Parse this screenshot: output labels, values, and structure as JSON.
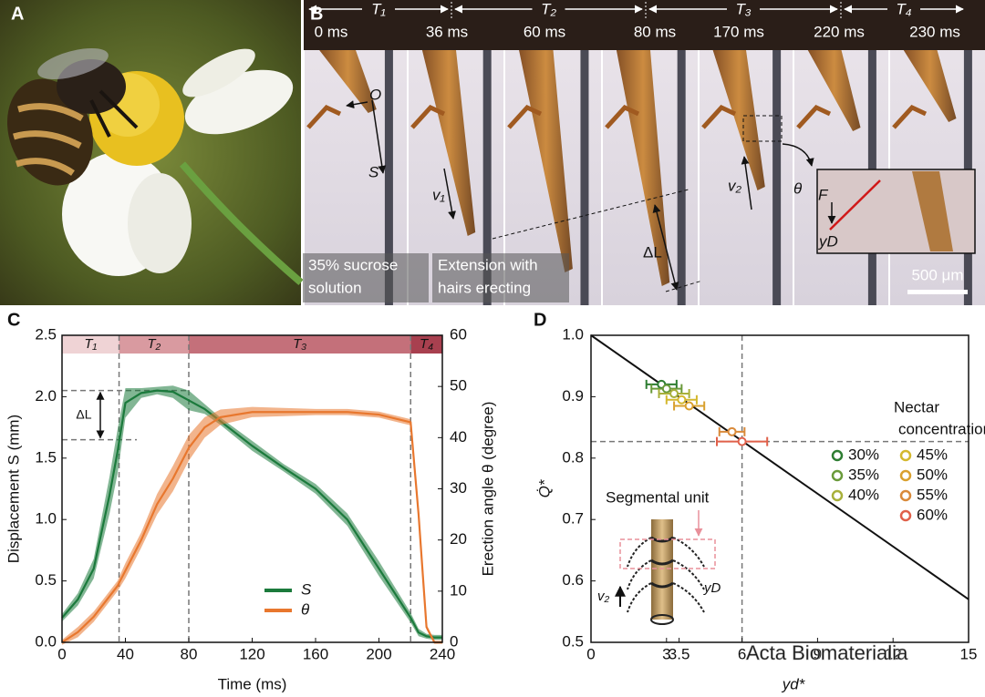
{
  "panel_labels": [
    "A",
    "B",
    "C",
    "D"
  ],
  "panel_b": {
    "phases": [
      "T₁",
      "T₂",
      "T₃",
      "T₄"
    ],
    "frame_times": [
      "0 ms",
      "36 ms",
      "60 ms",
      "80 ms",
      "170 ms",
      "220 ms",
      "230 ms"
    ],
    "origin": "O",
    "displacement": "S",
    "velocity_1": "v₁",
    "velocity_2": "v₂",
    "extension": "ΔL",
    "angle": "θ",
    "force": "F",
    "hair_offset": "yD",
    "caption_1": [
      "35% sucrose",
      "solution"
    ],
    "caption_2": [
      "Extension with",
      "hairs erecting"
    ],
    "scale_bar": "500 μm"
  },
  "chart_data": [
    {
      "type": "line",
      "xlabel": "Time (ms)",
      "ylabel": "Displacement  S (mm)",
      "y2label": "Erection angle θ (degree)",
      "x": [
        0,
        10,
        20,
        30,
        35,
        40,
        50,
        60,
        70,
        80,
        90,
        100,
        120,
        140,
        160,
        180,
        200,
        220,
        225,
        230,
        235,
        240
      ],
      "series": [
        {
          "name": "S",
          "color": "#1b7a3c",
          "values": [
            0.2,
            0.35,
            0.6,
            1.2,
            1.55,
            1.95,
            2.03,
            2.05,
            2.04,
            1.97,
            1.9,
            1.8,
            1.6,
            1.42,
            1.25,
            1.0,
            0.6,
            0.2,
            0.08,
            0.05,
            0.04,
            0.04
          ],
          "errors": [
            0.03,
            0.05,
            0.08,
            0.15,
            0.18,
            0.12,
            0.04,
            0.03,
            0.05,
            0.08,
            0.04,
            0.03,
            0.04,
            0.03,
            0.04,
            0.05,
            0.06,
            0.04,
            0.03,
            0.02,
            0.02,
            0.02
          ]
        },
        {
          "name": "θ",
          "color": "#e8772e",
          "axis": "y2",
          "values": [
            0,
            2,
            5,
            9,
            11,
            14,
            20,
            27,
            32,
            38,
            42,
            44,
            45,
            45,
            45,
            45,
            44.5,
            43,
            25,
            3,
            0,
            0
          ],
          "errors": [
            0.5,
            1,
            1,
            1,
            1,
            1.5,
            1.5,
            2,
            2.5,
            2.5,
            2,
            1.5,
            1,
            0.8,
            0.6,
            0.6,
            0.6,
            0.6,
            1,
            0.5,
            0.3,
            0.3
          ]
        }
      ],
      "xlim": [
        0,
        240
      ],
      "xticks": [
        0,
        40,
        80,
        120,
        160,
        200,
        240
      ],
      "ylim": [
        0,
        2.5
      ],
      "yticks": [
        {
          "value": 0,
          "label": "0.0"
        },
        0.5,
        {
          "value": 1,
          "label": "1.0"
        },
        1.5,
        {
          "value": 2,
          "label": "2.0"
        },
        2.5
      ],
      "y2lim": [
        0,
        60
      ],
      "y2ticks": [
        0,
        10,
        20,
        30,
        40,
        50,
        60
      ],
      "phases": [
        {
          "label": "T₁",
          "start": 0,
          "end": 36,
          "color": "#efd3d5"
        },
        {
          "label": "T₂",
          "start": 36,
          "end": 80,
          "color": "#d99aa0"
        },
        {
          "label": "T₃",
          "start": 80,
          "end": 220,
          "color": "#c4707a"
        },
        {
          "label": "T₄",
          "start": 220,
          "end": 240,
          "color": "#a8404f"
        }
      ],
      "vlines": [
        36,
        80,
        220
      ],
      "hlines": [
        2.05,
        1.65
      ],
      "annotation": "ΔL",
      "legend": "bottom-center"
    },
    {
      "type": "scatter",
      "xlabel": "yd*",
      "ylabel": "Q̇*",
      "xlim": [
        0,
        15
      ],
      "xticks": [
        0,
        3,
        3.5,
        6,
        9,
        12,
        15
      ],
      "ylim": [
        0.5,
        1.0
      ],
      "yticks": [
        0.5,
        0.6,
        0.7,
        0.8,
        0.9,
        {
          "value": 1,
          "label": "1.0"
        }
      ],
      "fit": {
        "x": [
          0,
          15
        ],
        "y": [
          1.0,
          0.57
        ]
      },
      "vline": 6,
      "hline": 0.827,
      "legend_title": [
        "Nectar",
        "concentration"
      ],
      "series": [
        {
          "name": "30%",
          "color": "#2e7d32",
          "x": [
            2.8
          ],
          "y": [
            0.92
          ],
          "xerr": [
            0.6
          ]
        },
        {
          "name": "35%",
          "color": "#6a9a3a",
          "x": [
            3.0
          ],
          "y": [
            0.913
          ],
          "xerr": [
            0.6
          ]
        },
        {
          "name": "40%",
          "color": "#a8b03a",
          "x": [
            3.3
          ],
          "y": [
            0.905
          ],
          "xerr": [
            0.6
          ]
        },
        {
          "name": "45%",
          "color": "#d4b82e",
          "x": [
            3.6
          ],
          "y": [
            0.895
          ],
          "xerr": [
            0.6
          ]
        },
        {
          "name": "50%",
          "color": "#d9a02e",
          "x": [
            3.9
          ],
          "y": [
            0.885
          ],
          "xerr": [
            0.6
          ]
        },
        {
          "name": "55%",
          "color": "#d98a3a",
          "x": [
            5.6
          ],
          "y": [
            0.843
          ],
          "xerr": [
            0.5
          ]
        },
        {
          "name": "60%",
          "color": "#e0604a",
          "x": [
            6.0
          ],
          "y": [
            0.827
          ],
          "xerr": [
            1.0
          ]
        }
      ],
      "inset": {
        "label": "Segmental unit",
        "velocity": "v₂",
        "offset": "yD"
      }
    }
  ],
  "watermark": "Acta Biomaterialia"
}
